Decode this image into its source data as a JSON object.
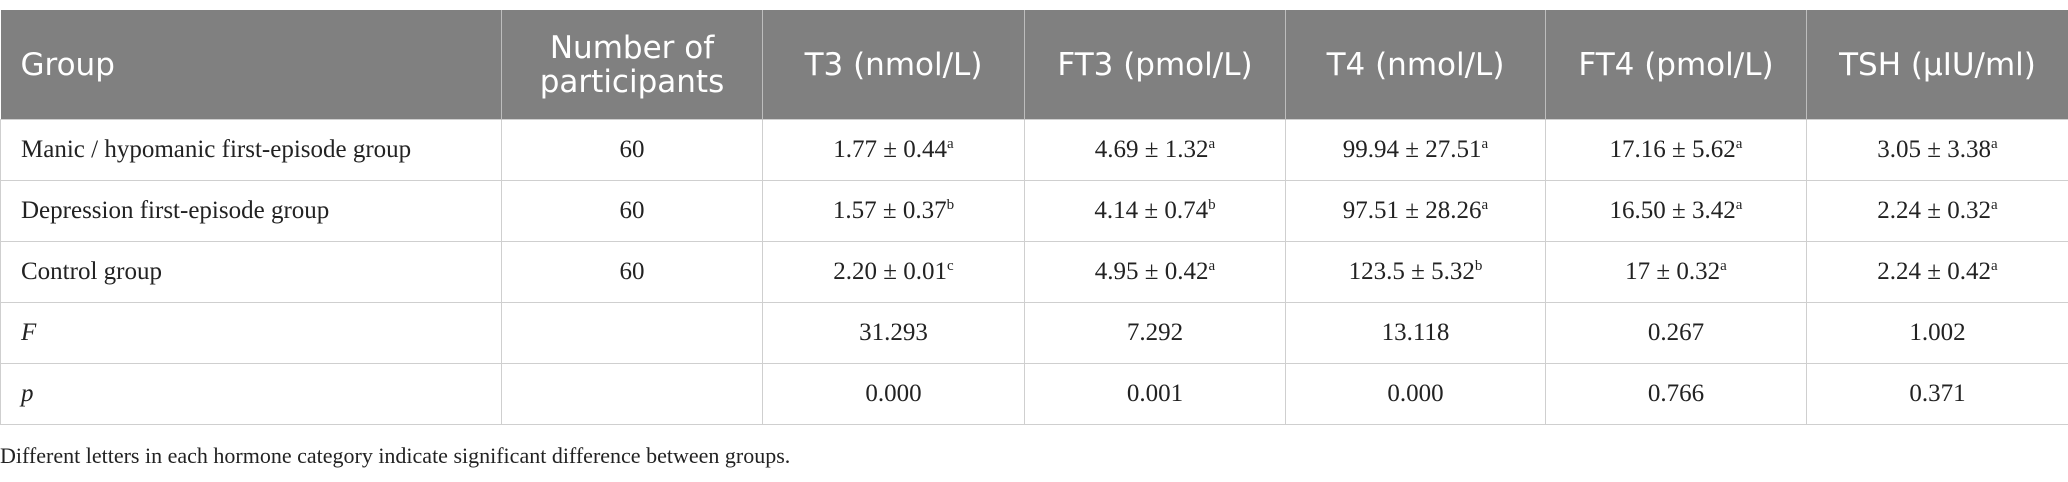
{
  "table": {
    "headers": [
      "Group",
      "Number of participants",
      "T3 (nmol/L)",
      "FT3 (pmol/L)",
      "T4 (nmol/L)",
      "FT4 (pmol/L)",
      "TSH (μIU/ml)"
    ],
    "rows": [
      {
        "group": "Manic / hypomanic first-episode group",
        "n": "60",
        "cells": [
          {
            "text": "1.77 ± 0.44",
            "sup": "a"
          },
          {
            "text": "4.69 ± 1.32",
            "sup": "a"
          },
          {
            "text": "99.94 ± 27.51",
            "sup": "a"
          },
          {
            "text": "17.16 ± 5.62",
            "sup": "a"
          },
          {
            "text": "3.05 ± 3.38",
            "sup": "a"
          }
        ]
      },
      {
        "group": "Depression first-episode group",
        "n": "60",
        "cells": [
          {
            "text": "1.57 ± 0.37",
            "sup": "b"
          },
          {
            "text": "4.14 ± 0.74",
            "sup": "b"
          },
          {
            "text": "97.51 ± 28.26",
            "sup": "a"
          },
          {
            "text": "16.50 ± 3.42",
            "sup": "a"
          },
          {
            "text": "2.24 ± 0.32",
            "sup": "a"
          }
        ]
      },
      {
        "group": "Control group",
        "n": "60",
        "cells": [
          {
            "text": "2.20 ± 0.01",
            "sup": "c"
          },
          {
            "text": "4.95 ± 0.42",
            "sup": "a"
          },
          {
            "text": "123.5 ± 5.32",
            "sup": "b"
          },
          {
            "text": "17 ± 0.32",
            "sup": "a"
          },
          {
            "text": "2.24 ± 0.42",
            "sup": "a"
          }
        ]
      },
      {
        "group": "F",
        "italic": true,
        "cells": [
          {
            "text": "31.293"
          },
          {
            "text": "7.292"
          },
          {
            "text": "13.118"
          },
          {
            "text": "0.267"
          },
          {
            "text": "1.002"
          }
        ]
      },
      {
        "group": "p",
        "italic": true,
        "cells": [
          {
            "text": "0.000"
          },
          {
            "text": "0.001"
          },
          {
            "text": "0.000"
          },
          {
            "text": "0.766"
          },
          {
            "text": "0.371"
          }
        ]
      }
    ]
  },
  "footnote": "Different letters in each hormone category indicate significant difference between groups."
}
